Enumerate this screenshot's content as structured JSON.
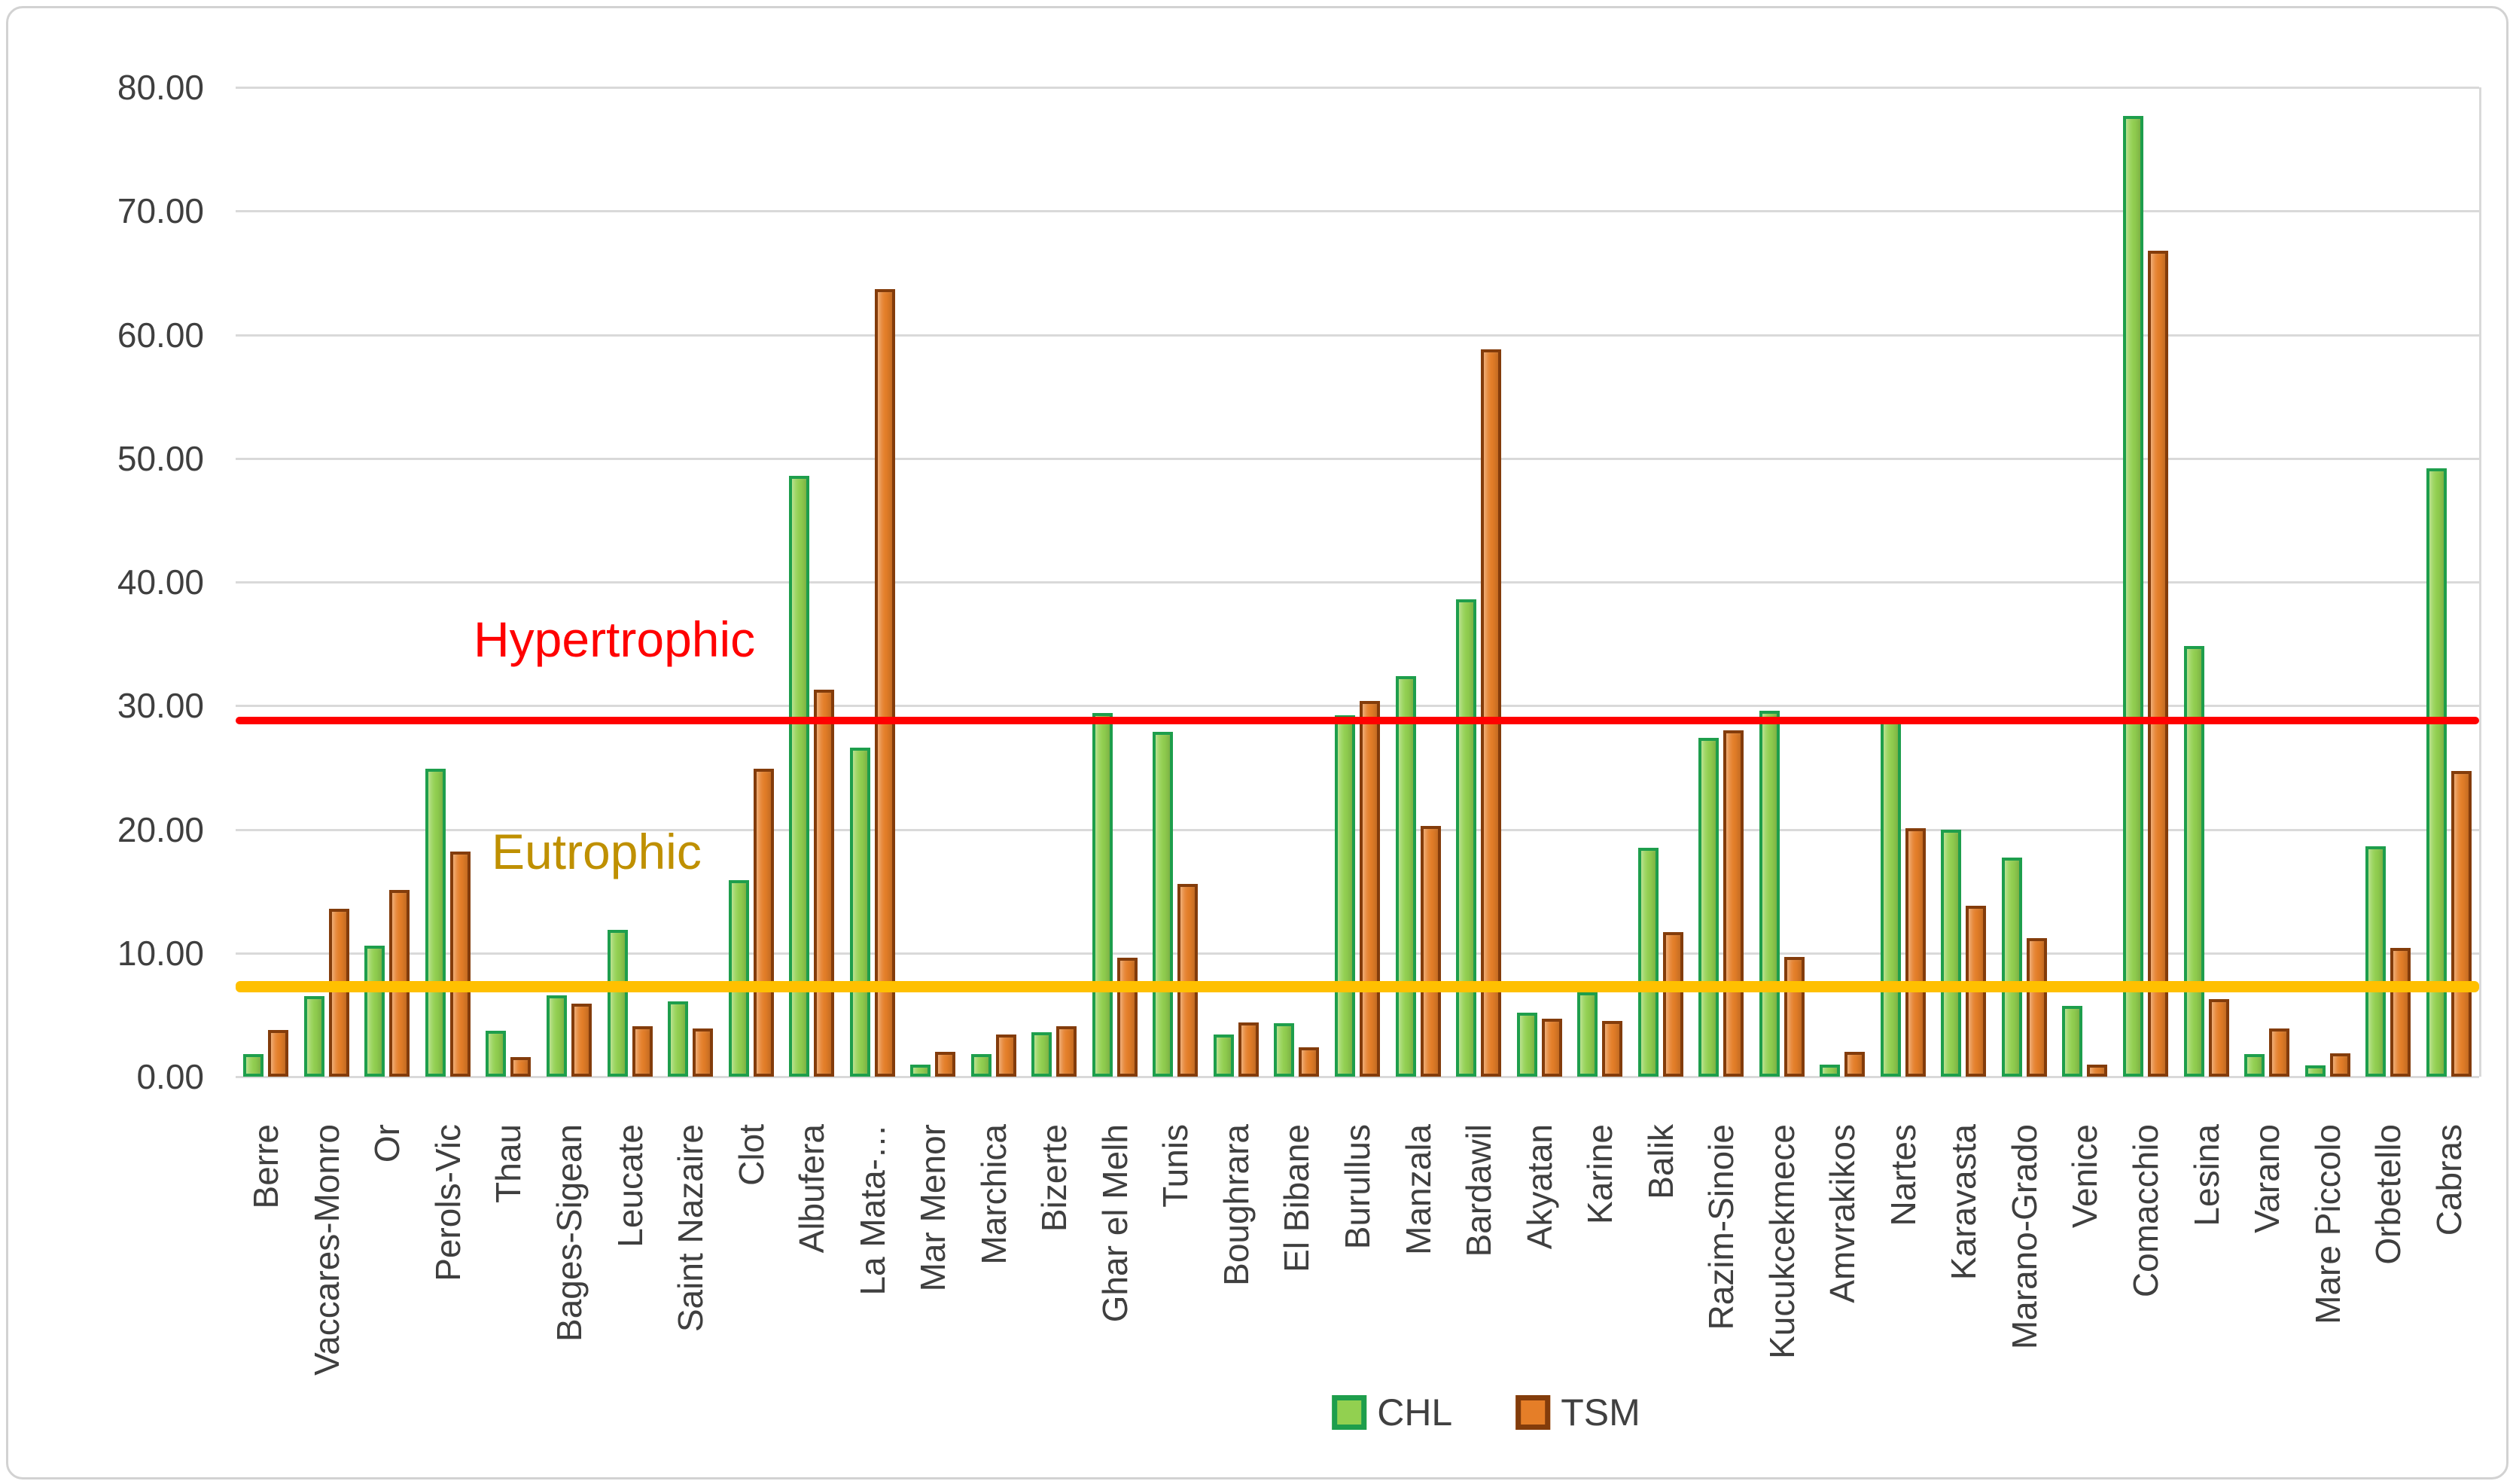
{
  "chart_data": {
    "type": "bar",
    "title": "",
    "xlabel": "",
    "ylabel": "",
    "ylim": [
      0,
      80
    ],
    "ytick_step": 10,
    "ytick_labels": [
      "0.00",
      "10.00",
      "20.00",
      "30.00",
      "40.00",
      "50.00",
      "60.00",
      "70.00",
      "80.00"
    ],
    "grid": true,
    "legend_position": "bottom-center",
    "categories": [
      "Berre",
      "Vaccares-Monro",
      "Or",
      "Perols-Vic",
      "Thau",
      "Bages-Sigean",
      "Leucate",
      "Saint Nazaire",
      "Clot",
      "Albufera",
      "La Mata-…",
      "Mar Menor",
      "Marchica",
      "Bizerte",
      "Ghar el Melh",
      "Tunis",
      "Boughrara",
      "El Bibane",
      "Burullus",
      "Manzala",
      "Bardawil",
      "Akyatan",
      "Karine",
      "Balik",
      "Razim-Sinoie",
      "Kucukcekmece",
      "Amvrakikos",
      "Nartes",
      "Karavasta",
      "Marano-Grado",
      "Venice",
      "Comacchio",
      "Lesina",
      "Varano",
      "Mare Piccolo",
      "Orbetello",
      "Cabras"
    ],
    "series": [
      {
        "name": "CHL",
        "fill_color": "#92D050",
        "border_color": "#1E9E4C",
        "values": [
          1.8,
          6.5,
          10.6,
          24.9,
          3.7,
          6.6,
          11.9,
          6.1,
          15.9,
          48.6,
          26.6,
          1.0,
          1.8,
          3.6,
          29.4,
          27.9,
          3.4,
          4.3,
          29.2,
          32.4,
          38.6,
          5.2,
          6.8,
          18.5,
          27.4,
          29.6,
          1.0,
          29.0,
          20.0,
          17.7,
          5.7,
          77.7,
          34.8,
          1.8,
          0.9,
          18.6,
          49.2
        ]
      },
      {
        "name": "TSM",
        "fill_color": "#E57E28",
        "border_color": "#833C0B",
        "values": [
          3.8,
          13.6,
          15.1,
          18.2,
          1.6,
          5.9,
          4.1,
          3.9,
          24.9,
          31.3,
          63.7,
          2.0,
          3.4,
          4.1,
          9.6,
          15.6,
          4.4,
          2.4,
          30.4,
          20.3,
          58.8,
          4.7,
          4.5,
          11.7,
          28.0,
          9.7,
          2.0,
          20.1,
          13.8,
          11.2,
          1.0,
          66.8,
          6.3,
          3.9,
          1.9,
          10.4,
          24.7
        ]
      }
    ],
    "reference_lines": [
      {
        "label": "Hypertrophic",
        "value": 28.8,
        "line_color": "#FF0000",
        "label_color": "#FF0000",
        "thickness": 10,
        "label_x": 618,
        "label_y": 800
      },
      {
        "label": "Eutrophic",
        "value": 7.3,
        "line_color": "#FFC000",
        "label_color": "#BF9000",
        "thickness": 15,
        "label_x": 642,
        "label_y": 1082
      }
    ],
    "axis_text_color": "#3f3f3f",
    "gridline_color": "#d9d9d9"
  },
  "legend": {
    "chl_label": "CHL",
    "tsm_label": "TSM"
  }
}
